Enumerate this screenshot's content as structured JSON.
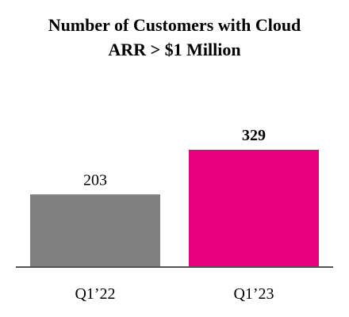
{
  "chart_data": {
    "type": "bar",
    "title": "Number of Customers with Cloud ARR > $1 Million",
    "categories": [
      "Q1’22",
      "Q1’23"
    ],
    "values": [
      203,
      329
    ],
    "colors": [
      "#808080",
      "#e6007e"
    ],
    "label_weights": [
      "normal",
      "bold"
    ]
  }
}
